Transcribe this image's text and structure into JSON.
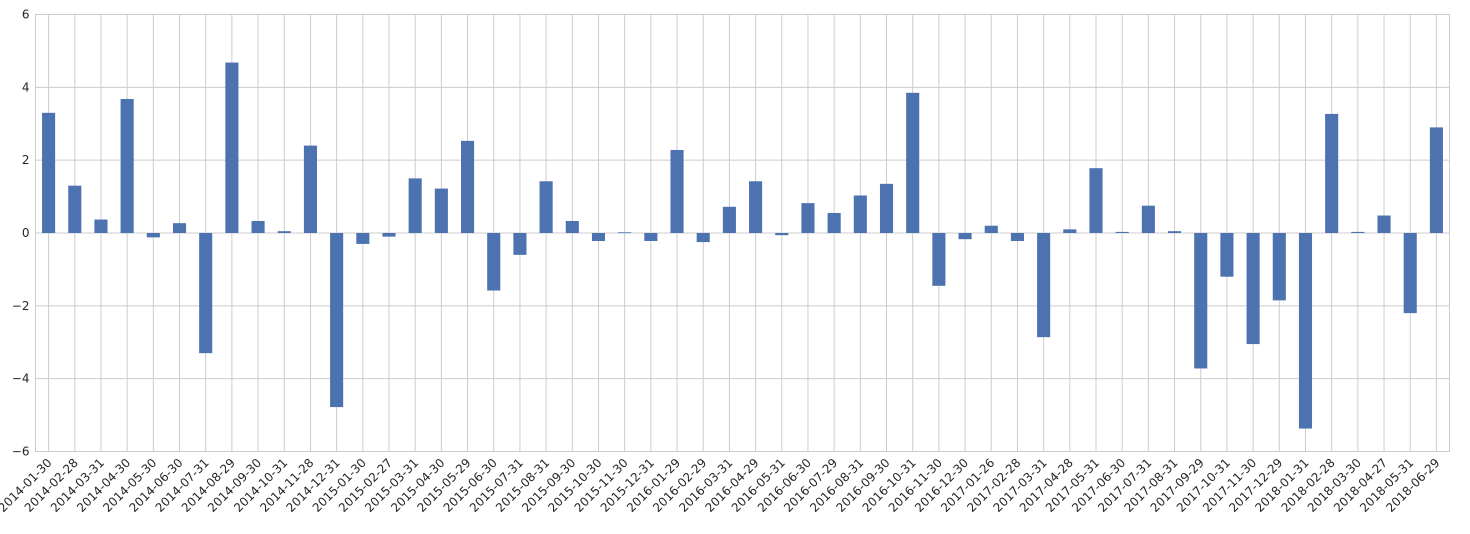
{
  "chart_data": {
    "type": "bar",
    "title": "",
    "xlabel": "",
    "ylabel": "",
    "ylim": [
      -6,
      6
    ],
    "yticks": [
      6,
      4,
      2,
      0,
      -2,
      -4,
      -6
    ],
    "ytick_labels": [
      "6",
      "4",
      "2",
      "0",
      "−2",
      "−4",
      "−6"
    ],
    "grid": true,
    "bar_color": "#4c72b0",
    "categories": [
      "2014-01-30",
      "2014-02-28",
      "2014-03-31",
      "2014-04-30",
      "2014-05-30",
      "2014-06-30",
      "2014-07-31",
      "2014-08-29",
      "2014-09-30",
      "2014-10-31",
      "2014-11-28",
      "2014-12-31",
      "2015-01-30",
      "2015-02-27",
      "2015-03-31",
      "2015-04-30",
      "2015-05-29",
      "2015-06-30",
      "2015-07-31",
      "2015-08-31",
      "2015-09-30",
      "2015-10-30",
      "2015-11-30",
      "2015-12-31",
      "2016-01-29",
      "2016-02-29",
      "2016-03-31",
      "2016-04-29",
      "2016-05-31",
      "2016-06-30",
      "2016-07-29",
      "2016-08-31",
      "2016-09-30",
      "2016-10-31",
      "2016-11-30",
      "2016-12-30",
      "2017-01-26",
      "2017-02-28",
      "2017-03-31",
      "2017-04-28",
      "2017-05-31",
      "2017-06-30",
      "2017-07-31",
      "2017-08-31",
      "2017-09-29",
      "2017-10-31",
      "2017-11-30",
      "2017-12-29",
      "2018-01-31",
      "2018-02-28",
      "2018-03-30",
      "2018-04-27",
      "2018-05-31",
      "2018-06-29"
    ],
    "values": [
      3.3,
      1.3,
      0.37,
      3.68,
      -0.12,
      0.27,
      -3.3,
      4.68,
      0.33,
      0.05,
      2.4,
      -4.78,
      -0.3,
      -0.1,
      1.5,
      1.22,
      2.53,
      -1.58,
      -0.6,
      1.42,
      0.33,
      -0.22,
      0.02,
      -0.22,
      2.28,
      -0.25,
      0.72,
      1.42,
      -0.06,
      0.82,
      0.55,
      1.03,
      1.35,
      3.85,
      -1.45,
      -0.17,
      0.2,
      -0.22,
      -2.86,
      0.1,
      1.78,
      0.03,
      0.75,
      0.05,
      -3.72,
      -1.2,
      -3.05,
      -1.85,
      -5.37,
      3.27,
      0.03,
      0.48,
      -2.2,
      2.9
    ]
  }
}
